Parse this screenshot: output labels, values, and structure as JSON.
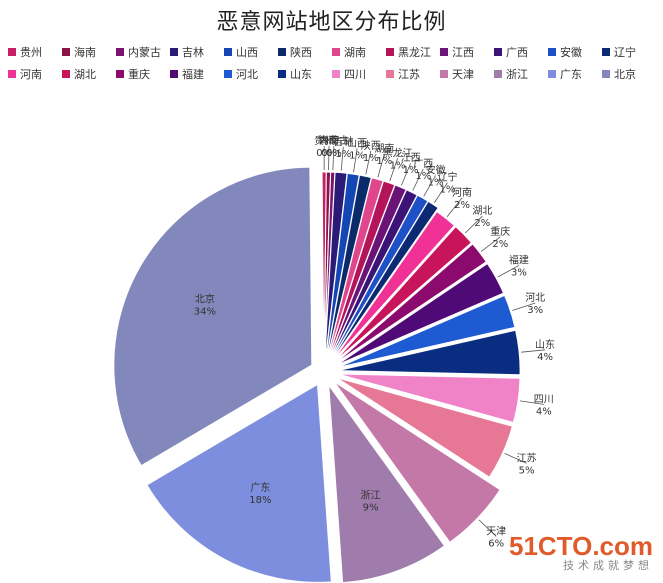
{
  "chart_data": {
    "type": "pie",
    "title": "恶意网站地区分布比例",
    "legend_position": "top",
    "slices": [
      {
        "name": "贵州",
        "value": 0,
        "label": "0%",
        "color": "#c81e64"
      },
      {
        "name": "海南",
        "value": 0,
        "label": "0%",
        "color": "#8a1448"
      },
      {
        "name": "内蒙古",
        "value": 0,
        "label": "0%",
        "color": "#7a1270"
      },
      {
        "name": "吉林",
        "value": 1,
        "label": "1%",
        "color": "#2a1b78"
      },
      {
        "name": "山西",
        "value": 1,
        "label": "1%",
        "color": "#1446b4"
      },
      {
        "name": "陕西",
        "value": 1,
        "label": "1%",
        "color": "#0a2a6a"
      },
      {
        "name": "湖南",
        "value": 1,
        "label": "1%",
        "color": "#e0468c"
      },
      {
        "name": "黑龙江",
        "value": 1,
        "label": "1%",
        "color": "#b4145a"
      },
      {
        "name": "江西",
        "value": 1,
        "label": "1%",
        "color": "#6a1478"
      },
      {
        "name": "广西",
        "value": 1,
        "label": "1%",
        "color": "#3c1478"
      },
      {
        "name": "安徽",
        "value": 1,
        "label": "1%",
        "color": "#1e50c8"
      },
      {
        "name": "辽宁",
        "value": 1,
        "label": "1%",
        "color": "#0c2a74"
      },
      {
        "name": "河南",
        "value": 2,
        "label": "2%",
        "color": "#f03296"
      },
      {
        "name": "湖北",
        "value": 2,
        "label": "2%",
        "color": "#c8145a"
      },
      {
        "name": "重庆",
        "value": 2,
        "label": "2%",
        "color": "#8c0a6e"
      },
      {
        "name": "福建",
        "value": 3,
        "label": "3%",
        "color": "#500a78"
      },
      {
        "name": "河北",
        "value": 3,
        "label": "3%",
        "color": "#1e5ad2"
      },
      {
        "name": "山东",
        "value": 4,
        "label": "4%",
        "color": "#0a2d82"
      },
      {
        "name": "四川",
        "value": 4,
        "label": "4%",
        "color": "#f082c8"
      },
      {
        "name": "江苏",
        "value": 5,
        "label": "5%",
        "color": "#e67896"
      },
      {
        "name": "天津",
        "value": 6,
        "label": "6%",
        "color": "#c478a8"
      },
      {
        "name": "浙江",
        "value": 9,
        "label": "9%",
        "color": "#a07cac"
      },
      {
        "name": "广东",
        "value": 18,
        "label": "18%",
        "color": "#7e8ede"
      },
      {
        "name": "北京",
        "value": 34,
        "label": "34%",
        "color": "#8288bc"
      }
    ]
  },
  "watermark": {
    "main": "51CTO.com",
    "sub": "技术成就梦想"
  }
}
